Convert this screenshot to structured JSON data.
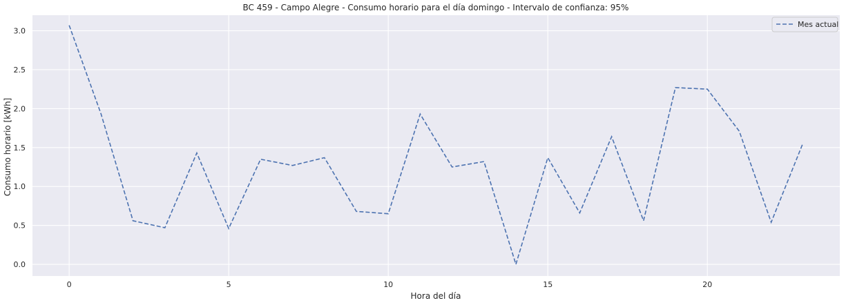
{
  "chart_data": {
    "type": "line",
    "title": "BC 459 - Campo Alegre - Consumo horario para el día domingo - Intervalo de confianza: 95%",
    "xlabel": "Hora del día",
    "ylabel": "Consumo horario [kWh]",
    "xlim": [
      -1.15,
      24.15
    ],
    "ylim": [
      -0.15,
      3.2
    ],
    "xticks": [
      0,
      5,
      10,
      15,
      20
    ],
    "yticks": [
      0.0,
      0.5,
      1.0,
      1.5,
      2.0,
      2.5,
      3.0
    ],
    "ytick_labels": [
      "0.0",
      "0.5",
      "1.0",
      "1.5",
      "2.0",
      "2.5",
      "3.0"
    ],
    "grid": true,
    "legend_position": "top-right",
    "series": [
      {
        "name": "Mes actual",
        "style": "dashed",
        "color": "#4c72b0",
        "x": [
          0,
          1,
          2,
          3,
          4,
          5,
          6,
          7,
          8,
          9,
          10,
          11,
          12,
          13,
          14,
          15,
          16,
          17,
          18,
          19,
          20,
          21,
          22,
          23
        ],
        "y": [
          3.07,
          1.93,
          0.56,
          0.47,
          1.43,
          0.46,
          1.35,
          1.27,
          1.37,
          0.68,
          0.65,
          1.93,
          1.25,
          1.32,
          0.0,
          1.37,
          0.66,
          1.64,
          0.56,
          2.27,
          2.25,
          1.71,
          0.54,
          1.56
        ]
      }
    ]
  }
}
